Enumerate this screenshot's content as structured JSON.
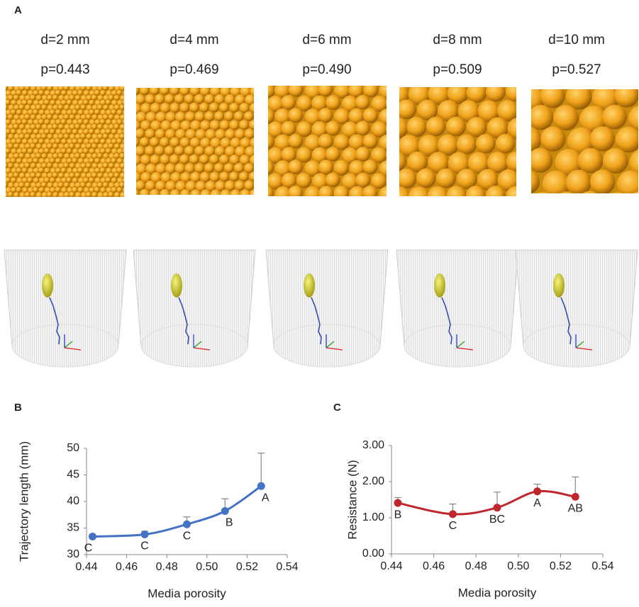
{
  "panel_a": {
    "label": "A",
    "columns": [
      {
        "d": "d=2 mm",
        "p": "p=0.443"
      },
      {
        "d": "d=4 mm",
        "p": "p=0.469"
      },
      {
        "d": "d=6 mm",
        "p": "p=0.490"
      },
      {
        "d": "d=8 mm",
        "p": "p=0.509"
      },
      {
        "d": "d=10 mm",
        "p": "p=0.527"
      }
    ]
  },
  "chart_data": [
    {
      "type": "line",
      "panel": "B",
      "xlabel": "Media porosity",
      "ylabel": "Trajectory length (mm)",
      "color": "#4472c4",
      "x": [
        0.443,
        0.469,
        0.49,
        0.509,
        0.527
      ],
      "values": [
        33.4,
        33.8,
        35.7,
        38.2,
        42.9
      ],
      "error": [
        0.3,
        0.6,
        1.4,
        2.3,
        6.2
      ],
      "annotations": [
        "C",
        "C",
        "C",
        "B",
        "A"
      ],
      "xlim": [
        0.44,
        0.54
      ],
      "xticks": [
        0.44,
        0.46,
        0.48,
        {
          "value": 0.5,
          "label": "0.50"
        },
        0.52,
        0.54
      ],
      "ylim": [
        30,
        50
      ],
      "yticks": [
        30,
        35,
        40,
        45,
        50
      ]
    },
    {
      "type": "line",
      "panel": "C",
      "xlabel": "Media porosity",
      "ylabel": "Resistance (N)",
      "color": "#c0262d",
      "x": [
        0.443,
        0.469,
        0.49,
        0.509,
        0.527
      ],
      "values": [
        1.41,
        1.1,
        1.28,
        1.73,
        1.58
      ],
      "error": [
        0.15,
        0.28,
        0.43,
        0.2,
        0.55
      ],
      "annotations": [
        "B",
        "C",
        "BC",
        "A",
        "AB"
      ],
      "xlim": [
        0.44,
        0.54
      ],
      "xticks": [
        0.44,
        0.46,
        0.48,
        {
          "value": 0.5,
          "label": "0.50"
        },
        0.52,
        0.54
      ],
      "ylim": [
        0,
        3
      ],
      "yticks": [
        {
          "value": 0,
          "label": "0.00"
        },
        {
          "value": 1,
          "label": "1.00"
        },
        {
          "value": 2,
          "label": "2.00"
        },
        {
          "value": 3,
          "label": "3.00"
        }
      ]
    }
  ]
}
